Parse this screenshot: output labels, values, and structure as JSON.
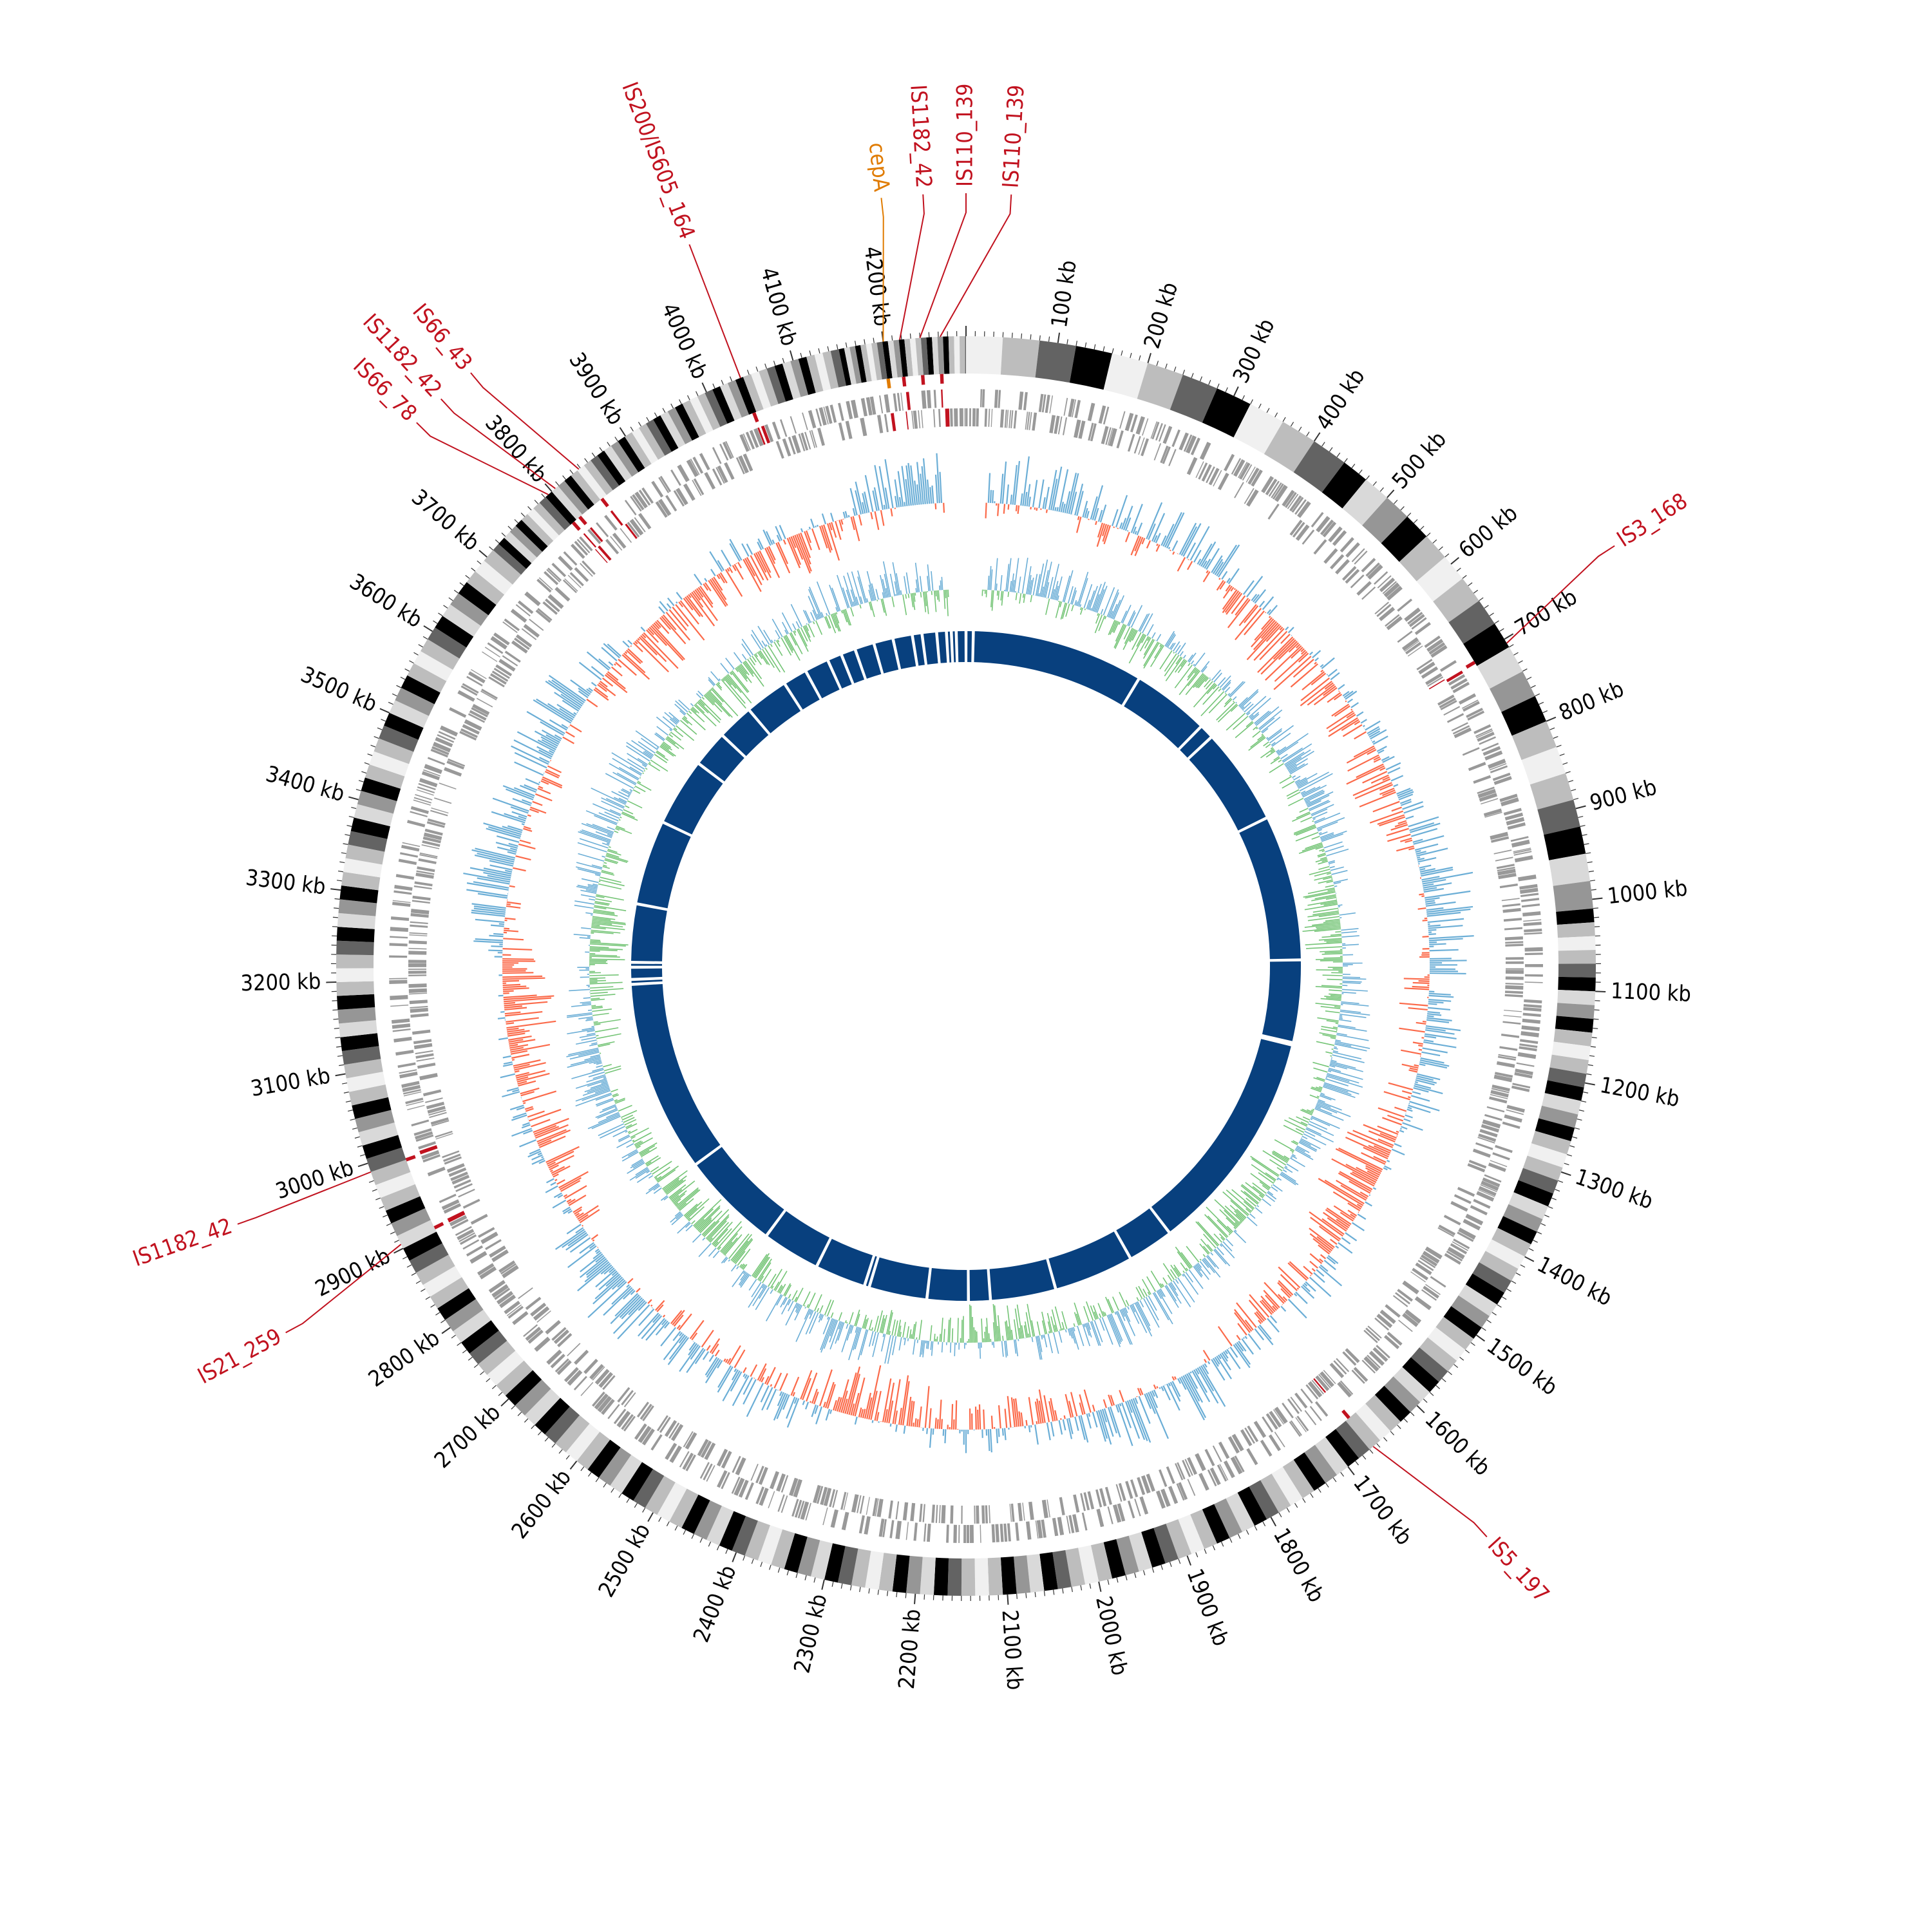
{
  "genome": {
    "length_kb": 4290,
    "colors": {
      "is_element": "#c1121f",
      "gene": "#e07b00",
      "gene_track": "#999999",
      "gc_skew_positive": "#6baed6",
      "gc_skew_negative": "#fb6a4a",
      "gc_content": "#74c476",
      "gc_content_alt": "#6baed6",
      "contig": "#08407e",
      "karyotype_band_shades": [
        "#f0f0f0",
        "#bdbdbd",
        "#636363",
        "#000000",
        "#d9d9d9",
        "#969696"
      ]
    }
  },
  "scale": {
    "unit_label": "kb",
    "major_ticks_kb": [
      100,
      200,
      300,
      400,
      500,
      600,
      700,
      800,
      900,
      1000,
      1100,
      1200,
      1300,
      1400,
      1500,
      1600,
      1700,
      1800,
      1900,
      2000,
      2100,
      2200,
      2300,
      2400,
      2500,
      2600,
      2700,
      2800,
      2900,
      3000,
      3100,
      3200,
      3300,
      3400,
      3500,
      3600,
      3700,
      3800,
      3900,
      4000,
      4100,
      4200
    ],
    "tick_labels": [
      "100 kb",
      "200 kb",
      "300 kb",
      "400 kb",
      "500 kb",
      "600 kb",
      "700 kb",
      "800 kb",
      "900 kb",
      "1000 kb",
      "1100 kb",
      "1200 kb",
      "1300 kb",
      "1400 kb",
      "1500 kb",
      "1600 kb",
      "1700 kb",
      "1800 kb",
      "1900 kb",
      "2000 kb",
      "2100 kb",
      "2200 kb",
      "2300 kb",
      "2400 kb",
      "2500 kb",
      "2600 kb",
      "2700 kb",
      "2800 kb",
      "2900 kb",
      "3000 kb",
      "3100 kb",
      "3200 kb",
      "3300 kb",
      "3400 kb",
      "3500 kb",
      "3600 kb",
      "3700 kb",
      "3800 kb",
      "3900 kb",
      "4000 kb",
      "4100 kb",
      "4200 kb"
    ]
  },
  "annotations": [
    {
      "label": "IS110_139",
      "position_kb": 4262,
      "type": "is_element"
    },
    {
      "label": "IS110_139",
      "position_kb": 4240,
      "type": "is_element"
    },
    {
      "label": "IS1182_42",
      "position_kb": 4218,
      "type": "is_element"
    },
    {
      "label": "cepA",
      "position_kb": 4200,
      "type": "gene"
    },
    {
      "label": "IS200/IS605_164",
      "position_kb": 4040,
      "type": "is_element"
    },
    {
      "label": "IS66_43",
      "position_kb": 3838,
      "type": "is_element"
    },
    {
      "label": "IS1182_42",
      "position_kb": 3805,
      "type": "is_element"
    },
    {
      "label": "IS66_78",
      "position_kb": 3795,
      "type": "is_element"
    },
    {
      "label": "IS3_168",
      "position_kb": 705,
      "type": "is_element"
    },
    {
      "label": "IS5_197",
      "position_kb": 1665,
      "type": "is_element"
    },
    {
      "label": "IS1182_42",
      "position_kb": 2990,
      "type": "is_element"
    },
    {
      "label": "IS21_259",
      "position_kb": 2905,
      "type": "is_element"
    }
  ],
  "contig_gaps_kb": [
    0,
    15,
    370,
    530,
    560,
    760,
    1060,
    1230,
    1235,
    1700,
    1795,
    1960,
    2095,
    2140,
    2225,
    2345,
    2355,
    2460,
    2580,
    2785,
    3180,
    3190,
    3215,
    3225,
    3345,
    3520,
    3660,
    3735,
    3810,
    3900,
    3950,
    4000,
    4030,
    4060,
    4100,
    4140,
    4180,
    4200,
    4230,
    4250,
    4260,
    4270
  ]
}
